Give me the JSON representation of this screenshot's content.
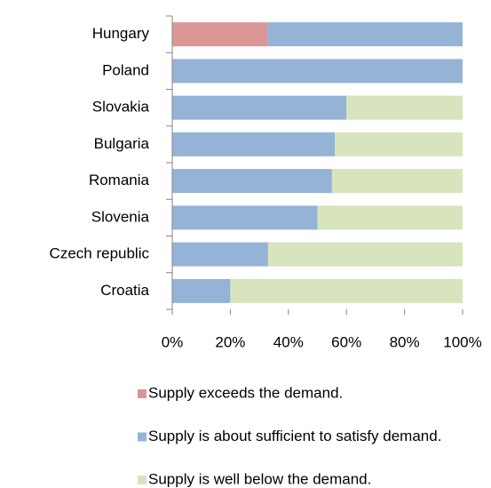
{
  "chart_data": {
    "type": "stacked_bar_horizontal",
    "categories": [
      "Hungary",
      "Poland",
      "Slovakia",
      "Bulgaria",
      "Romania",
      "Slovenia",
      "Czech republic",
      "Croatia"
    ],
    "series": [
      {
        "name": "Supply exceeds the demand.",
        "color": "#d99694",
        "values": [
          33,
          0,
          0,
          0,
          0,
          0,
          0,
          0
        ]
      },
      {
        "name": "Supply is about sufficient to satisfy demand.",
        "color": "#95b3d7",
        "values": [
          67,
          100,
          60,
          56,
          55,
          50,
          33,
          20
        ]
      },
      {
        "name": "Supply is well below the demand.",
        "color": "#d7e4bd",
        "values": [
          0,
          0,
          40,
          44,
          45,
          50,
          67,
          80
        ]
      }
    ],
    "xlim": [
      0,
      100
    ],
    "xticks": [
      {
        "value": 0,
        "label": "0%"
      },
      {
        "value": 20,
        "label": "20%"
      },
      {
        "value": 40,
        "label": "40%"
      },
      {
        "value": 60,
        "label": "60%"
      },
      {
        "value": 80,
        "label": "80%"
      },
      {
        "value": 100,
        "label": "100%"
      }
    ],
    "legend": "bottom"
  }
}
